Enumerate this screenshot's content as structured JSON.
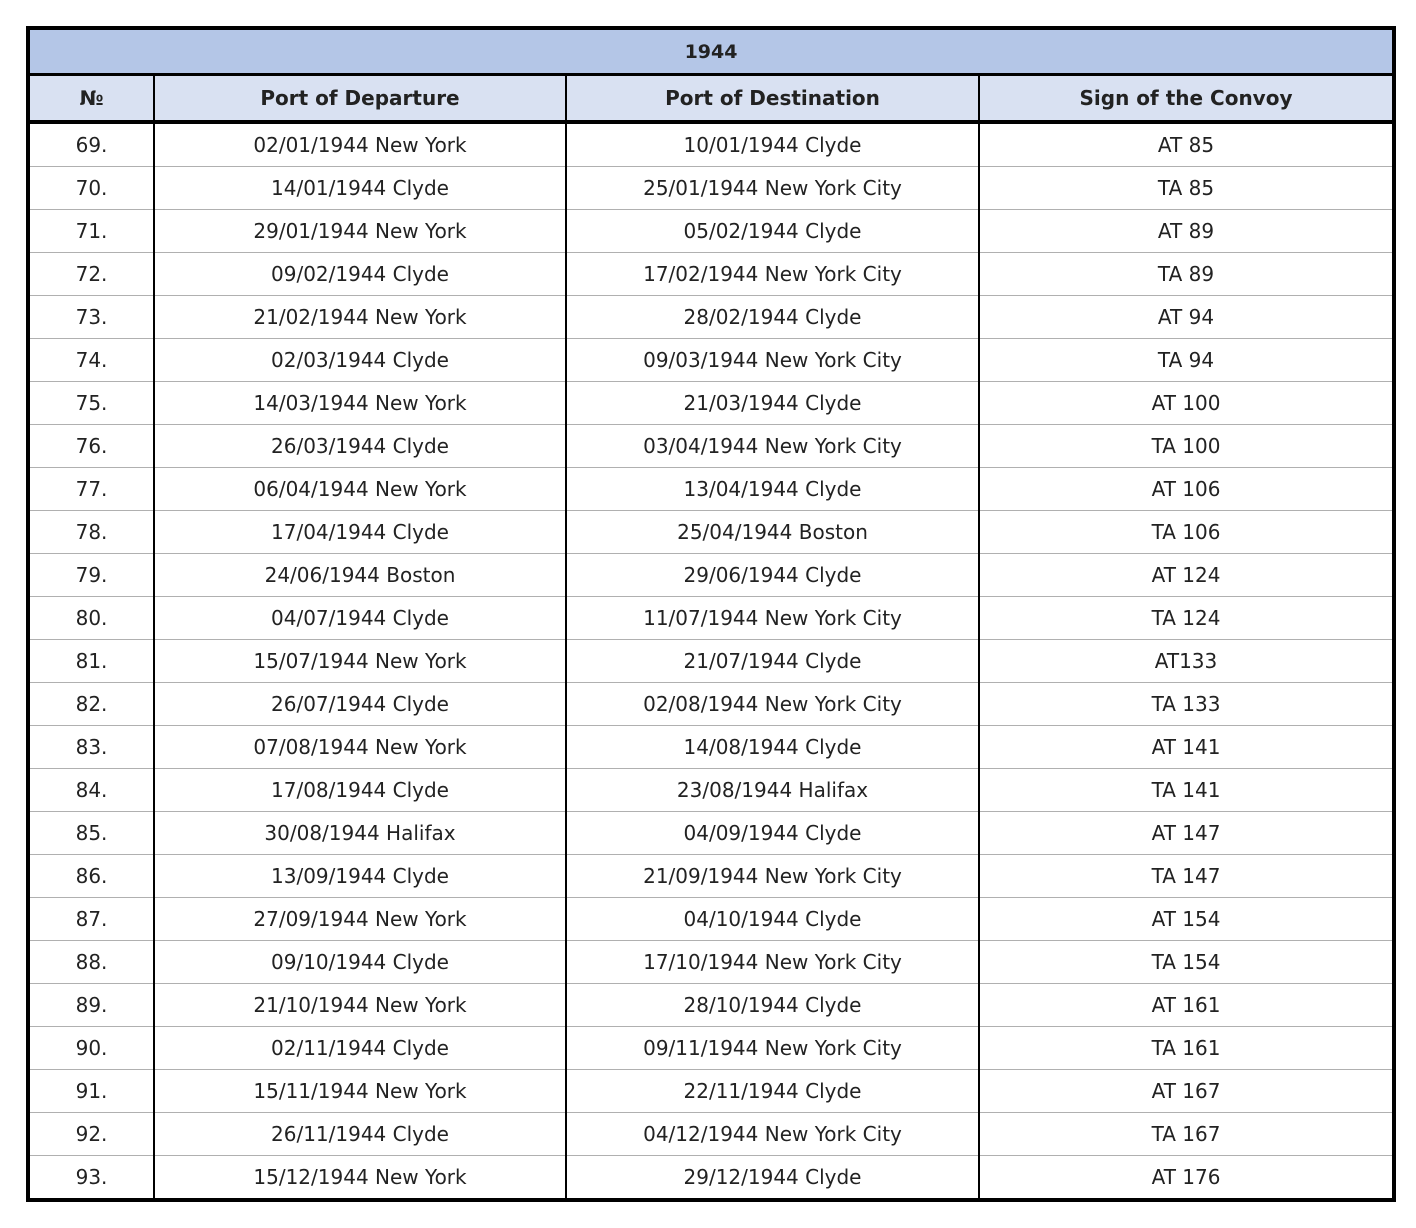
{
  "table": {
    "title": "1944",
    "header": [
      "№",
      "Port of Departure",
      "Port of Destination",
      "Sign of the Convoy"
    ],
    "rows": [
      [
        "69.",
        "02/01/1944 New York",
        "10/01/1944 Clyde",
        "AT 85"
      ],
      [
        "70.",
        "14/01/1944 Clyde",
        "25/01/1944 New York City",
        "TA 85"
      ],
      [
        "71.",
        "29/01/1944 New York",
        "05/02/1944 Clyde",
        "AT 89"
      ],
      [
        "72.",
        "09/02/1944 Clyde",
        "17/02/1944 New York City",
        "TA 89"
      ],
      [
        "73.",
        "21/02/1944 New York",
        "28/02/1944 Clyde",
        "AT 94"
      ],
      [
        "74.",
        "02/03/1944 Clyde",
        "09/03/1944 New York City",
        "TA 94"
      ],
      [
        "75.",
        "14/03/1944 New York",
        "21/03/1944 Clyde",
        "AT 100"
      ],
      [
        "76.",
        "26/03/1944 Clyde",
        "03/04/1944 New York City",
        "TA 100"
      ],
      [
        "77.",
        "06/04/1944 New York",
        "13/04/1944 Clyde",
        "AT 106"
      ],
      [
        "78.",
        "17/04/1944 Clyde",
        "25/04/1944 Boston",
        "TA 106"
      ],
      [
        "79.",
        "24/06/1944 Boston",
        "29/06/1944 Clyde",
        "AT 124"
      ],
      [
        "80.",
        "04/07/1944 Clyde",
        "11/07/1944 New York City",
        "TA 124"
      ],
      [
        "81.",
        "15/07/1944 New York",
        "21/07/1944 Clyde",
        "AT133"
      ],
      [
        "82.",
        "26/07/1944 Clyde",
        "02/08/1944 New York City",
        "TA 133"
      ],
      [
        "83.",
        "07/08/1944 New York",
        "14/08/1944 Clyde",
        "AT 141"
      ],
      [
        "84.",
        "17/08/1944 Clyde",
        "23/08/1944 Halifax",
        "TA 141"
      ],
      [
        "85.",
        "30/08/1944 Halifax",
        "04/09/1944 Clyde",
        "AT 147"
      ],
      [
        "86.",
        "13/09/1944 Clyde",
        "21/09/1944 New York City",
        "TA 147"
      ],
      [
        "87.",
        "27/09/1944 New York",
        "04/10/1944 Clyde",
        "AT 154"
      ],
      [
        "88.",
        "09/10/1944 Clyde",
        "17/10/1944 New York City",
        "TA 154"
      ],
      [
        "89.",
        "21/10/1944 New York",
        "28/10/1944 Clyde",
        "AT 161"
      ],
      [
        "90.",
        "02/11/1944 Clyde",
        "09/11/1944 New York City",
        "TA 161"
      ],
      [
        "91.",
        "15/11/1944 New York",
        "22/11/1944 Clyde",
        "AT 167"
      ],
      [
        "92.",
        "26/11/1944 Clyde",
        "04/12/1944 New York City",
        "TA 167"
      ],
      [
        "93.",
        "15/12/1944 New York",
        "29/12/1944 Clyde",
        "AT 176"
      ]
    ]
  }
}
